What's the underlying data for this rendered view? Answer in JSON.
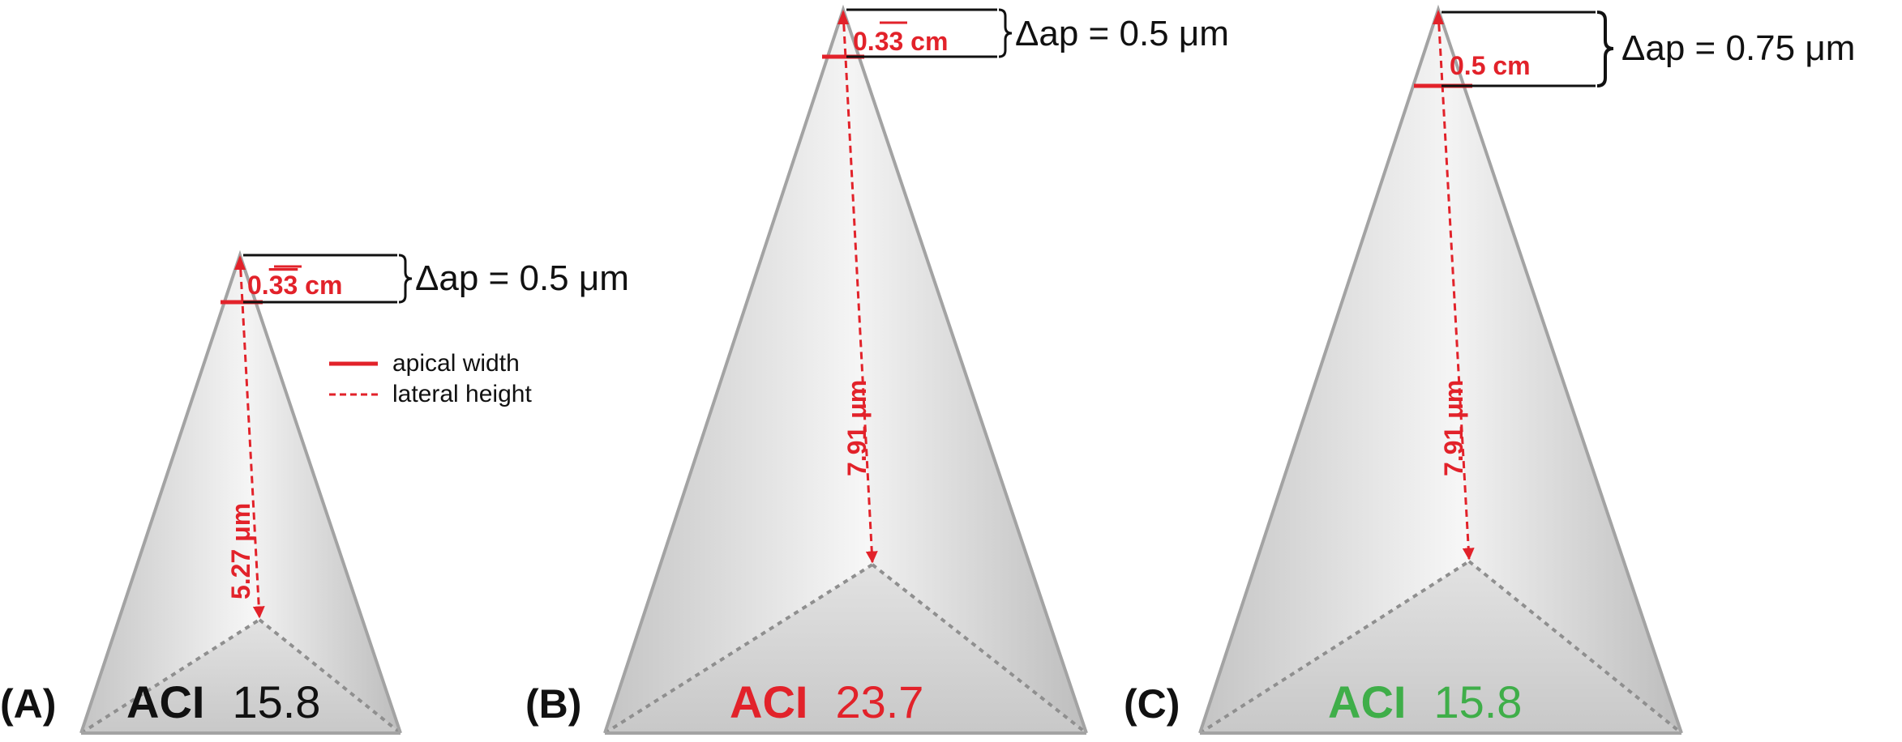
{
  "colors": {
    "red": "#e2222a",
    "green": "#3fae49",
    "black": "#111111",
    "outline": "#a3a3a3",
    "base_dash": "#8f8f8f"
  },
  "legend": {
    "apical_width": "apical width",
    "lateral_height": "lateral height"
  },
  "panels": [
    {
      "id": "A",
      "label": "(A)",
      "aci_word": "ACI",
      "aci_value": "15.8",
      "aci_color": "#111111",
      "width_main": "0.",
      "width_bar": "33",
      "width_unit": " cm",
      "height": "5.27 μm",
      "delta": "Δap = 0.5 μm"
    },
    {
      "id": "B",
      "label": "(B)",
      "aci_word": "ACI",
      "aci_value": "23.7",
      "aci_color": "#e2222a",
      "width_main": "0.",
      "width_bar": "33",
      "width_unit": " cm",
      "height": "7.91 μm",
      "delta": "Δap = 0.5 μm"
    },
    {
      "id": "C",
      "label": "(C)",
      "aci_word": "ACI",
      "aci_value": "15.8",
      "aci_color": "#3fae49",
      "width_main": "0.5 cm",
      "width_bar": "",
      "width_unit": "",
      "height": "7.91 μm",
      "delta": "Δap = 0.75 μm"
    }
  ]
}
